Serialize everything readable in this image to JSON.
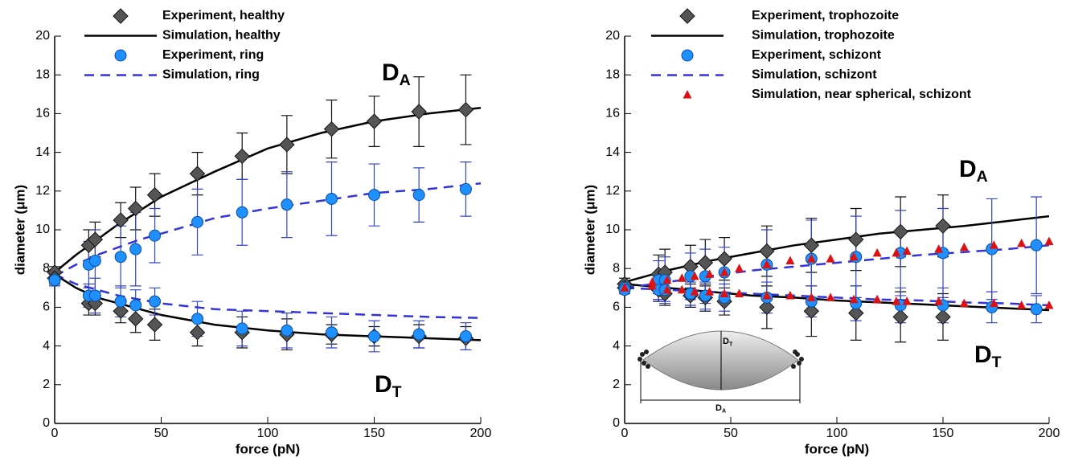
{
  "chart_data": [
    {
      "type": "line",
      "xlabel": "force (pN)",
      "ylabel": "diameter (μm)",
      "xlim": [
        0,
        200
      ],
      "ylim": [
        0,
        20
      ],
      "xticks": [
        0,
        50,
        100,
        150,
        200
      ],
      "yticks": [
        0,
        2,
        4,
        6,
        8,
        10,
        12,
        14,
        16,
        18,
        20
      ],
      "annotations": [
        {
          "text": "D",
          "subscript": "A"
        },
        {
          "text": "D",
          "subscript": "T"
        }
      ],
      "series": [
        {
          "name": "Experiment, healthy",
          "kind": "diamond",
          "color": "#555555",
          "x": [
            0,
            16,
            19,
            31,
            38,
            47,
            67,
            88,
            109,
            130,
            150,
            171,
            193
          ],
          "da": [
            7.8,
            9.2,
            9.5,
            10.5,
            11.1,
            11.8,
            12.9,
            13.8,
            14.4,
            15.2,
            15.6,
            16.1,
            16.2
          ],
          "da_err": [
            0.3,
            0.8,
            0.9,
            0.9,
            1.1,
            1.1,
            1.1,
            1.2,
            1.5,
            1.5,
            1.3,
            1.8,
            1.8
          ],
          "dt": [
            7.5,
            6.2,
            6.2,
            5.8,
            5.4,
            5.1,
            4.7,
            4.7,
            4.6,
            4.6,
            4.5,
            4.5,
            4.4
          ],
          "dt_err": [
            0.3,
            0.6,
            0.6,
            0.6,
            0.7,
            0.8,
            0.7,
            0.8,
            0.8,
            0.5,
            0.5,
            0.6,
            0.6
          ]
        },
        {
          "name": "Simulation, healthy",
          "kind": "solid",
          "color": "#000000",
          "x": [
            0,
            10,
            20,
            30,
            40,
            50,
            75,
            100,
            125,
            150,
            175,
            200
          ],
          "da": [
            7.8,
            8.7,
            9.5,
            10.3,
            11.0,
            11.7,
            13.0,
            14.2,
            15.0,
            15.6,
            16.0,
            16.3
          ],
          "dt": [
            7.7,
            7.0,
            6.5,
            6.2,
            5.9,
            5.6,
            5.1,
            4.8,
            4.6,
            4.5,
            4.4,
            4.3
          ]
        },
        {
          "name": "Experiment, ring",
          "kind": "circle",
          "color": "#1e90ff",
          "x": [
            0,
            16,
            19,
            31,
            38,
            47,
            67,
            88,
            109,
            130,
            150,
            171,
            193
          ],
          "da": [
            7.4,
            8.2,
            8.4,
            8.6,
            9.0,
            9.7,
            10.4,
            10.9,
            11.3,
            11.6,
            11.8,
            11.8,
            12.1
          ],
          "da_err": [
            0.3,
            1.2,
            1.6,
            1.6,
            1.9,
            1.4,
            1.7,
            1.7,
            1.7,
            1.9,
            1.6,
            1.4,
            1.4
          ],
          "dt": [
            7.4,
            6.6,
            6.6,
            6.3,
            6.1,
            6.3,
            5.4,
            4.9,
            4.8,
            4.7,
            4.5,
            4.6,
            4.5
          ],
          "dt_err": [
            0.3,
            0.6,
            0.9,
            0.8,
            0.8,
            0.7,
            0.9,
            0.9,
            0.9,
            0.8,
            0.8,
            0.7,
            0.7
          ]
        },
        {
          "name": "Simulation, ring",
          "kind": "dashed",
          "color": "#3333dd",
          "x": [
            0,
            10,
            20,
            30,
            40,
            50,
            75,
            100,
            125,
            150,
            175,
            200
          ],
          "da": [
            7.6,
            8.2,
            8.7,
            9.1,
            9.5,
            9.8,
            10.6,
            11.1,
            11.5,
            11.9,
            12.1,
            12.4
          ],
          "dt": [
            7.7,
            7.2,
            6.9,
            6.6,
            6.4,
            6.2,
            5.9,
            5.8,
            5.7,
            5.6,
            5.5,
            5.45
          ]
        }
      ]
    },
    {
      "type": "line",
      "xlabel": "force (pN)",
      "ylabel": "diameter (μm)",
      "xlim": [
        0,
        200
      ],
      "ylim": [
        0,
        20
      ],
      "xticks": [
        0,
        50,
        100,
        150,
        200
      ],
      "yticks": [
        0,
        2,
        4,
        6,
        8,
        10,
        12,
        14,
        16,
        18,
        20
      ],
      "annotations": [
        {
          "text": "D",
          "subscript": "A"
        },
        {
          "text": "D",
          "subscript": "T"
        }
      ],
      "inset_labels": [
        {
          "text": "D",
          "subscript": "T"
        },
        {
          "text": "D",
          "subscript": "A"
        }
      ],
      "series": [
        {
          "name": "Experiment, trophozoite",
          "kind": "diamond",
          "color": "#555555",
          "x": [
            0,
            16,
            19,
            31,
            38,
            47,
            67,
            88,
            109,
            130,
            150
          ],
          "da": [
            7.2,
            7.7,
            7.8,
            8.1,
            8.3,
            8.5,
            8.9,
            9.2,
            9.5,
            9.9,
            10.2
          ],
          "da_err": [
            0.3,
            1.0,
            1.2,
            1.1,
            1.2,
            1.1,
            1.3,
            1.4,
            1.6,
            1.8,
            1.6
          ],
          "dt": [
            7.0,
            6.9,
            6.7,
            6.6,
            6.5,
            6.3,
            6.0,
            5.8,
            5.7,
            5.5,
            5.5
          ],
          "dt_err": [
            0.3,
            0.6,
            0.6,
            0.6,
            0.7,
            0.7,
            1.1,
            1.3,
            1.4,
            1.3,
            1.2
          ]
        },
        {
          "name": "Simulation, trophozoite",
          "kind": "solid",
          "color": "#000000",
          "x": [
            0,
            20,
            40,
            60,
            80,
            100,
            120,
            140,
            160,
            180,
            200
          ],
          "da": [
            7.3,
            7.9,
            8.4,
            8.8,
            9.2,
            9.5,
            9.8,
            10.0,
            10.2,
            10.45,
            10.7
          ],
          "dt": [
            7.2,
            7.0,
            6.8,
            6.6,
            6.5,
            6.35,
            6.25,
            6.15,
            6.05,
            5.95,
            5.85
          ]
        },
        {
          "name": "Experiment, schizont",
          "kind": "circle",
          "color": "#1e90ff",
          "x": [
            0,
            16,
            19,
            31,
            38,
            47,
            67,
            88,
            109,
            130,
            150,
            173,
            194
          ],
          "da": [
            7.0,
            7.4,
            7.4,
            7.6,
            7.6,
            7.8,
            8.2,
            8.5,
            8.6,
            8.8,
            8.8,
            9.0,
            9.2
          ],
          "da_err": [
            0.3,
            1.0,
            1.2,
            1.2,
            1.4,
            1.3,
            1.8,
            2.0,
            2.1,
            2.2,
            2.3,
            2.6,
            2.5
          ],
          "dt": [
            6.9,
            6.9,
            6.9,
            6.7,
            6.6,
            6.5,
            6.5,
            6.3,
            6.2,
            6.1,
            6.1,
            6.0,
            5.9
          ],
          "dt_err": [
            0.2,
            0.5,
            0.6,
            0.6,
            0.7,
            0.7,
            0.8,
            0.8,
            0.9,
            0.9,
            0.9,
            0.8,
            0.7
          ]
        },
        {
          "name": "Simulation, schizont",
          "kind": "dashed",
          "color": "#3333dd",
          "x": [
            0,
            20,
            40,
            60,
            80,
            100,
            120,
            140,
            160,
            180,
            200
          ],
          "da": [
            7.0,
            7.3,
            7.6,
            7.9,
            8.1,
            8.3,
            8.5,
            8.7,
            8.85,
            9.0,
            9.2
          ],
          "dt": [
            7.0,
            6.9,
            6.8,
            6.7,
            6.6,
            6.5,
            6.4,
            6.35,
            6.25,
            6.2,
            6.1
          ]
        },
        {
          "name": "Simulation, near spherical, schizont",
          "kind": "triangle",
          "color": "#dd1111",
          "x": [
            0,
            13,
            20,
            27,
            33,
            40,
            47,
            54,
            67,
            78,
            88,
            97,
            108,
            119,
            128,
            133,
            148,
            160,
            174,
            187,
            200
          ],
          "da": [
            7.0,
            7.3,
            7.4,
            7.5,
            7.6,
            7.7,
            7.8,
            8.0,
            8.2,
            8.4,
            8.5,
            8.5,
            8.6,
            8.8,
            8.8,
            8.9,
            9.0,
            9.1,
            9.2,
            9.3,
            9.4
          ],
          "dt": [
            7.0,
            7.1,
            6.9,
            6.9,
            6.8,
            6.8,
            6.7,
            6.7,
            6.6,
            6.6,
            6.5,
            6.5,
            6.4,
            6.4,
            6.3,
            6.3,
            6.3,
            6.2,
            6.2,
            6.1,
            6.1
          ]
        }
      ]
    }
  ]
}
